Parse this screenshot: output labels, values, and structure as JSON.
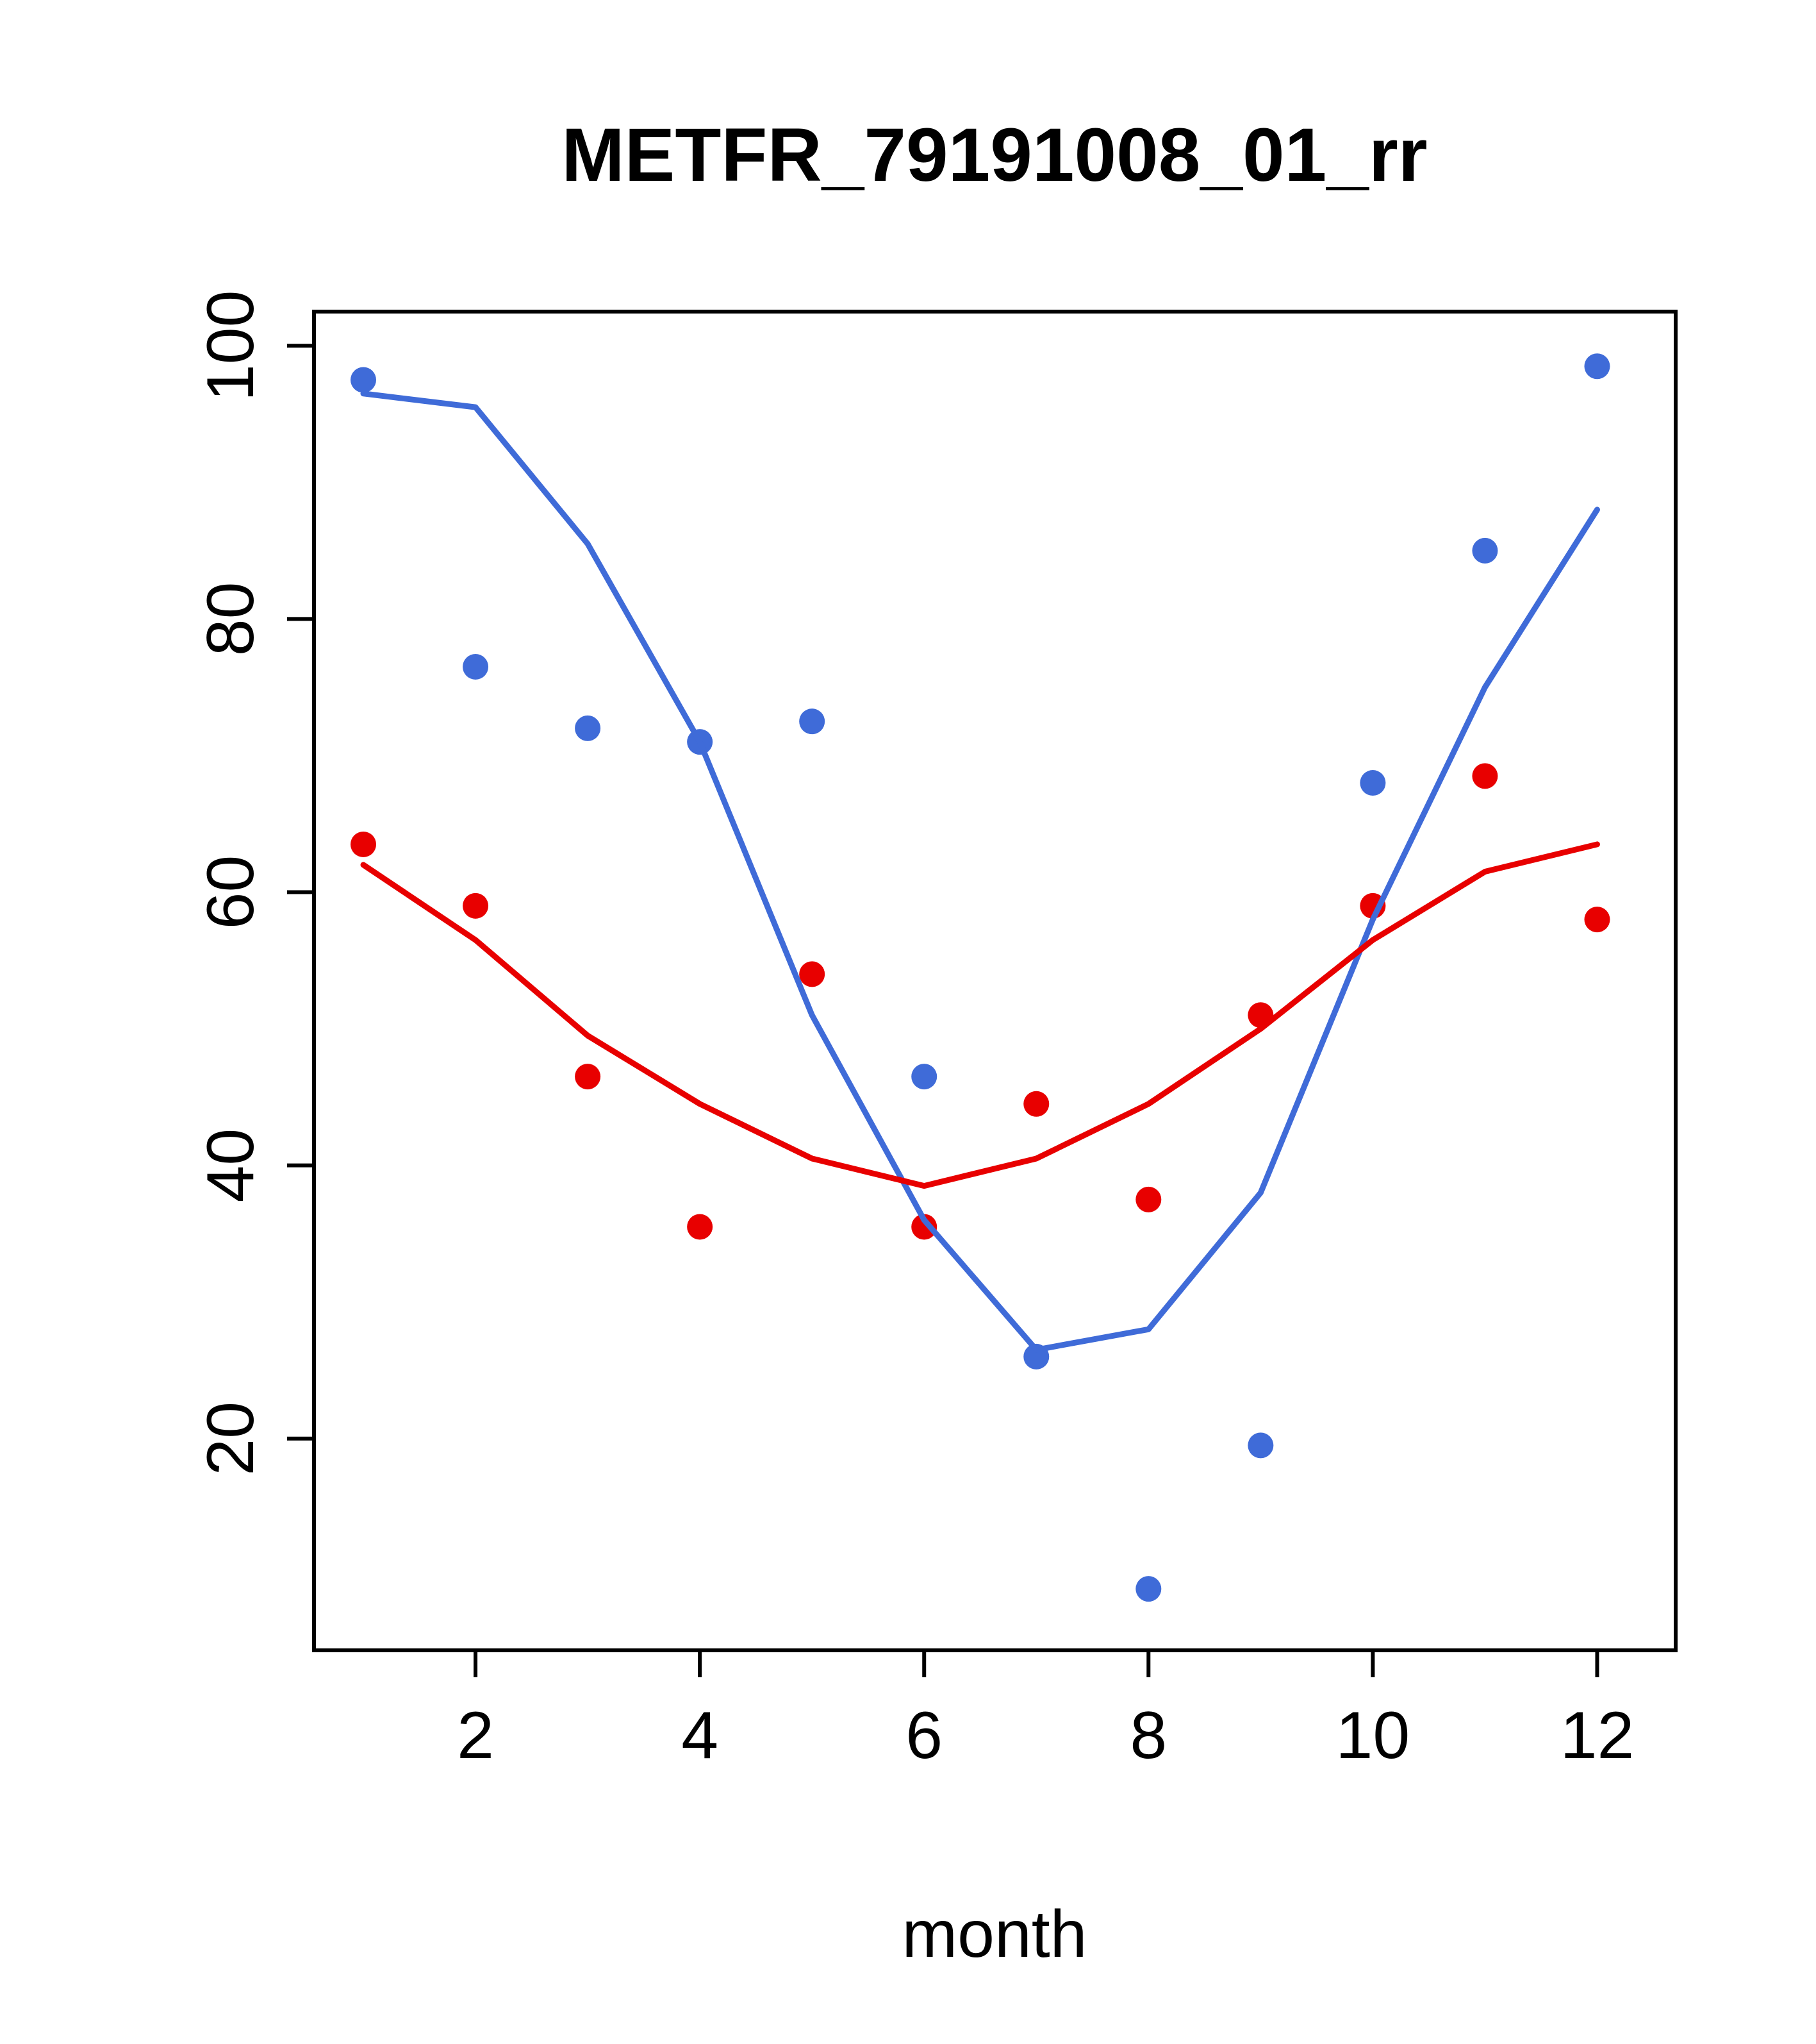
{
  "chart_data": {
    "type": "scatter",
    "title": "METFR_79191008_01_rr",
    "xlabel": "month",
    "ylabel": "",
    "grid": false,
    "legend": "none",
    "xlim": [
      0.56,
      12.7
    ],
    "ylim": [
      4.5,
      102.5
    ],
    "x_ticks": [
      2,
      4,
      6,
      8,
      10,
      12
    ],
    "y_ticks": [
      20,
      40,
      60,
      80,
      100
    ],
    "x": [
      1,
      2,
      3,
      4,
      5,
      6,
      7,
      8,
      9,
      10,
      11,
      12
    ],
    "colors": {
      "blue": "#3F6BD8",
      "red": "#E80000"
    },
    "series": [
      {
        "name": "blue-points",
        "style": "points",
        "color": "#3F6BD8",
        "values": [
          97.5,
          76.5,
          72,
          71,
          72.5,
          46.5,
          26,
          9,
          19.5,
          68,
          85,
          98.5
        ]
      },
      {
        "name": "red-points",
        "style": "points",
        "color": "#E80000",
        "values": [
          63.5,
          59,
          46.5,
          35.5,
          54,
          35.5,
          44.5,
          37.5,
          51,
          59,
          68.5,
          58
        ]
      },
      {
        "name": "blue-trend-line",
        "style": "line",
        "color": "#3F6BD8",
        "values": [
          96.5,
          95.5,
          85.5,
          71,
          51,
          36,
          26.5,
          28,
          38,
          58,
          75,
          88
        ]
      },
      {
        "name": "red-trend-line",
        "style": "line",
        "color": "#E80000",
        "values": [
          62,
          56.5,
          49.5,
          44.5,
          40.5,
          38.5,
          40.5,
          44.5,
          50,
          56.5,
          61.5,
          63.5
        ]
      }
    ]
  }
}
